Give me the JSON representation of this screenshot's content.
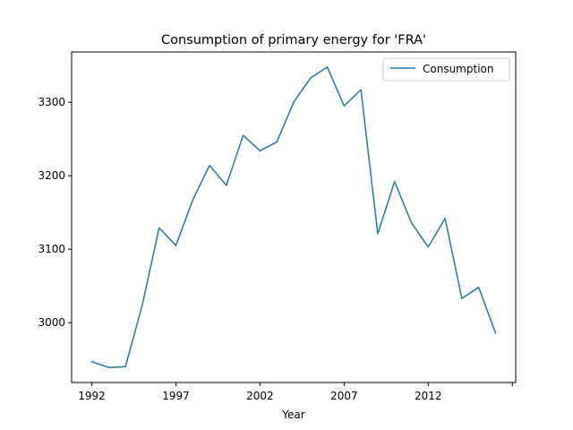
{
  "chart_data": {
    "type": "line",
    "title": "Consumption of primary energy for 'FRA'",
    "xlabel": "Year",
    "ylabel": "",
    "x": [
      1992,
      1993,
      1994,
      1995,
      1996,
      1997,
      1998,
      1999,
      2000,
      2001,
      2002,
      2003,
      2004,
      2005,
      2006,
      2007,
      2008,
      2009,
      2010,
      2011,
      2012,
      2013,
      2014,
      2015,
      2016
    ],
    "series": [
      {
        "name": "Consumption",
        "color": "#1f77b4",
        "values": [
          2947,
          2939,
          2940,
          3024,
          3129,
          3105,
          3167,
          3214,
          3187,
          3255,
          3234,
          3246,
          3300,
          3333,
          3348,
          3295,
          3317,
          3121,
          3192,
          3136,
          3103,
          3142,
          3033,
          3048,
          2986
        ]
      }
    ],
    "xticks": [
      "1992",
      "1997",
      "2002",
      "2007",
      "2012",
      ""
    ],
    "xtick_values": [
      1992,
      1997,
      2002,
      2007,
      2012,
      2017
    ],
    "yticks": [
      "3000",
      "3100",
      "3200",
      "3300"
    ],
    "ytick_values": [
      3000,
      3100,
      3200,
      3300
    ],
    "xlim": [
      1990.8,
      2017.2
    ],
    "ylim": [
      2918.5,
      3368.5
    ],
    "legend_position": "top-right",
    "grid": false
  }
}
